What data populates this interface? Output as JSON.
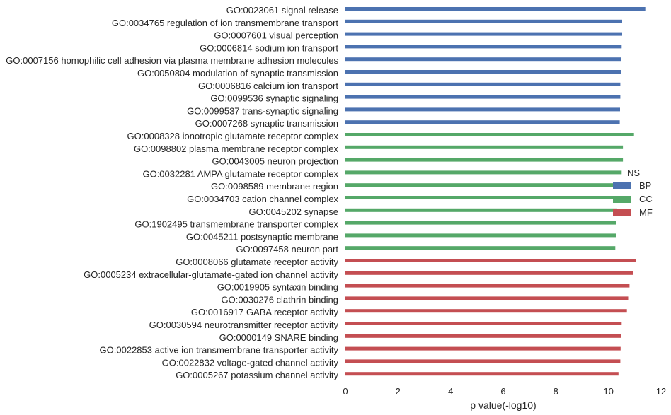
{
  "chart_data": {
    "type": "bar",
    "orientation": "horizontal",
    "title": "",
    "xlabel": "p value(-log10)",
    "ylabel": "",
    "xlim": [
      0,
      12
    ],
    "xticks": [
      "0",
      "2",
      "4",
      "6",
      "8",
      "10",
      "12"
    ],
    "grid": false,
    "legend": {
      "title": "NS",
      "placement": "right",
      "entries": [
        {
          "name": "BP",
          "color": "#4c72b0"
        },
        {
          "name": "CC",
          "color": "#55a868"
        },
        {
          "name": "MF",
          "color": "#c44e52"
        }
      ]
    },
    "categories": [
      "GO:0023061 signal release",
      "GO:0034765 regulation of ion transmembrane transport",
      "GO:0007601 visual perception",
      "GO:0006814 sodium ion transport",
      "GO:0007156 homophilic cell adhesion via plasma membrane adhesion molecules",
      "GO:0050804 modulation of synaptic transmission",
      "GO:0006816 calcium ion transport",
      "GO:0099536 synaptic signaling",
      "GO:0099537 trans-synaptic signaling",
      "GO:0007268 synaptic transmission",
      "GO:0008328 ionotropic glutamate receptor complex",
      "GO:0098802 plasma membrane receptor complex",
      "GO:0043005 neuron projection",
      "GO:0032281 AMPA glutamate receptor complex",
      "GO:0098589 membrane region",
      "GO:0034703 cation channel complex",
      "GO:0045202 synapse",
      "GO:1902495 transmembrane transporter complex",
      "GO:0045211 postsynaptic membrane",
      "GO:0097458 neuron part",
      "GO:0008066 glutamate receptor activity",
      "GO:0005234 extracellular-glutamate-gated ion channel activity",
      "GO:0019905 syntaxin binding",
      "GO:0030276 clathrin binding",
      "GO:0016917 GABA receptor activity",
      "GO:0030594 neurotransmitter receptor activity",
      "GO:0000149 SNARE binding",
      "GO:0022853 active ion transmembrane transporter activity",
      "GO:0022832 voltage-gated channel activity",
      "GO:0005267 potassium channel activity"
    ],
    "groups": [
      "BP",
      "BP",
      "BP",
      "BP",
      "BP",
      "BP",
      "BP",
      "BP",
      "BP",
      "BP",
      "CC",
      "CC",
      "CC",
      "CC",
      "CC",
      "CC",
      "CC",
      "CC",
      "CC",
      "CC",
      "MF",
      "MF",
      "MF",
      "MF",
      "MF",
      "MF",
      "MF",
      "MF",
      "MF",
      "MF"
    ],
    "values": [
      11.4,
      10.52,
      10.52,
      10.5,
      10.48,
      10.47,
      10.45,
      10.45,
      10.44,
      10.43,
      10.97,
      10.55,
      10.55,
      10.5,
      10.42,
      10.38,
      10.33,
      10.3,
      10.28,
      10.26,
      11.05,
      10.95,
      10.8,
      10.75,
      10.7,
      10.5,
      10.47,
      10.46,
      10.45,
      10.38
    ]
  }
}
